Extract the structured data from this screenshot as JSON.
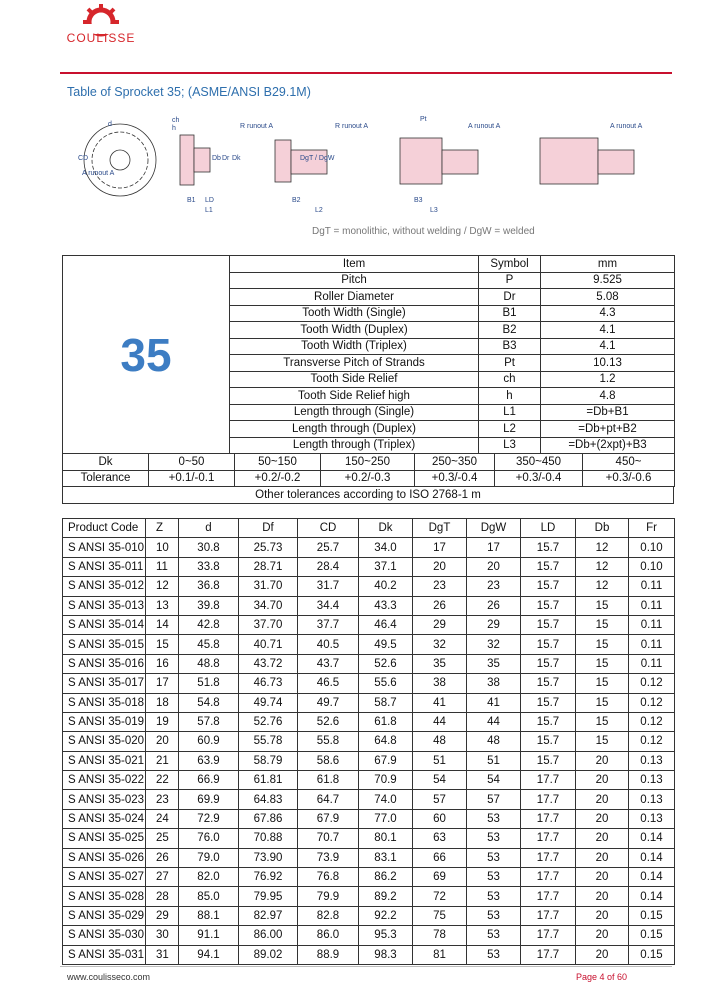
{
  "header": {
    "brand": "COULISSE",
    "title": "Table of Sprocket 35; (ASME/ANSI B29.1M)"
  },
  "drawing": {
    "labels": [
      "d",
      "CD",
      "A runout A",
      "ch",
      "h",
      "R runout A",
      "B1",
      "LD",
      "L1",
      "Db",
      "Dr",
      "Dk",
      "R runout A",
      "B2",
      "L2",
      "DgT / DgW",
      "Pt",
      "A runout A",
      "B3",
      "L3",
      "A runout A"
    ],
    "caption": "DgT = monolithic, without welding / DgW = welded"
  },
  "spec": {
    "big": "35",
    "columns": [
      "Item",
      "Symbol",
      "mm"
    ],
    "rows": [
      [
        "Pitch",
        "P",
        "9.525"
      ],
      [
        "Roller Diameter",
        "Dr",
        "5.08"
      ],
      [
        "Tooth Width (Single)",
        "B1",
        "4.3"
      ],
      [
        "Tooth Width (Duplex)",
        "B2",
        "4.1"
      ],
      [
        "Tooth Width (Triplex)",
        "B3",
        "4.1"
      ],
      [
        "Transverse Pitch of Strands",
        "Pt",
        "10.13"
      ],
      [
        "Tooth Side Relief",
        "ch",
        "1.2"
      ],
      [
        "Tooth Side Relief high",
        "h",
        "4.8"
      ],
      [
        "Length through (Single)",
        "L1",
        "=Db+B1"
      ],
      [
        "Length through (Duplex)",
        "L2",
        "=Db+pt+B2"
      ],
      [
        "Length through (Triplex)",
        "L3",
        "=Db+(2xpt)+B3"
      ]
    ],
    "dk_row": [
      "Dk",
      "0~50",
      "50~150",
      "150~250",
      "250~350",
      "350~450",
      "450~"
    ],
    "tolerance_row": [
      "Tolerance",
      "+0.1/-0.1",
      "+0.2/-0.2",
      "+0.2/-0.3",
      "+0.3/-0.4",
      "+0.3/-0.4",
      "+0.3/-0.6"
    ],
    "note": "Other tolerances according to ISO 2768-1 m"
  },
  "products": {
    "columns": [
      "Product Code",
      "Z",
      "d",
      "Df",
      "CD",
      "Dk",
      "DgT",
      "DgW",
      "LD",
      "Db",
      "Fr"
    ],
    "rows": [
      [
        "S ANSI 35-010",
        "10",
        "30.8",
        "25.73",
        "25.7",
        "34.0",
        "17",
        "17",
        "15.7",
        "12",
        "0.10"
      ],
      [
        "S ANSI 35-011",
        "11",
        "33.8",
        "28.71",
        "28.4",
        "37.1",
        "20",
        "20",
        "15.7",
        "12",
        "0.10"
      ],
      [
        "S ANSI 35-012",
        "12",
        "36.8",
        "31.70",
        "31.7",
        "40.2",
        "23",
        "23",
        "15.7",
        "12",
        "0.11"
      ],
      [
        "S ANSI 35-013",
        "13",
        "39.8",
        "34.70",
        "34.4",
        "43.3",
        "26",
        "26",
        "15.7",
        "15",
        "0.11"
      ],
      [
        "S ANSI 35-014",
        "14",
        "42.8",
        "37.70",
        "37.7",
        "46.4",
        "29",
        "29",
        "15.7",
        "15",
        "0.11"
      ],
      [
        "S ANSI 35-015",
        "15",
        "45.8",
        "40.71",
        "40.5",
        "49.5",
        "32",
        "32",
        "15.7",
        "15",
        "0.11"
      ],
      [
        "S ANSI 35-016",
        "16",
        "48.8",
        "43.72",
        "43.7",
        "52.6",
        "35",
        "35",
        "15.7",
        "15",
        "0.11"
      ],
      [
        "S ANSI 35-017",
        "17",
        "51.8",
        "46.73",
        "46.5",
        "55.6",
        "38",
        "38",
        "15.7",
        "15",
        "0.12"
      ],
      [
        "S ANSI 35-018",
        "18",
        "54.8",
        "49.74",
        "49.7",
        "58.7",
        "41",
        "41",
        "15.7",
        "15",
        "0.12"
      ],
      [
        "S ANSI 35-019",
        "19",
        "57.8",
        "52.76",
        "52.6",
        "61.8",
        "44",
        "44",
        "15.7",
        "15",
        "0.12"
      ],
      [
        "S ANSI 35-020",
        "20",
        "60.9",
        "55.78",
        "55.8",
        "64.8",
        "48",
        "48",
        "15.7",
        "15",
        "0.12"
      ],
      [
        "S ANSI 35-021",
        "21",
        "63.9",
        "58.79",
        "58.6",
        "67.9",
        "51",
        "51",
        "15.7",
        "20",
        "0.13"
      ],
      [
        "S ANSI 35-022",
        "22",
        "66.9",
        "61.81",
        "61.8",
        "70.9",
        "54",
        "54",
        "17.7",
        "20",
        "0.13"
      ],
      [
        "S ANSI 35-023",
        "23",
        "69.9",
        "64.83",
        "64.7",
        "74.0",
        "57",
        "57",
        "17.7",
        "20",
        "0.13"
      ],
      [
        "S ANSI 35-024",
        "24",
        "72.9",
        "67.86",
        "67.9",
        "77.0",
        "60",
        "53",
        "17.7",
        "20",
        "0.13"
      ],
      [
        "S ANSI 35-025",
        "25",
        "76.0",
        "70.88",
        "70.7",
        "80.1",
        "63",
        "53",
        "17.7",
        "20",
        "0.14"
      ],
      [
        "S ANSI 35-026",
        "26",
        "79.0",
        "73.90",
        "73.9",
        "83.1",
        "66",
        "53",
        "17.7",
        "20",
        "0.14"
      ],
      [
        "S ANSI 35-027",
        "27",
        "82.0",
        "76.92",
        "76.8",
        "86.2",
        "69",
        "53",
        "17.7",
        "20",
        "0.14"
      ],
      [
        "S ANSI 35-028",
        "28",
        "85.0",
        "79.95",
        "79.9",
        "89.2",
        "72",
        "53",
        "17.7",
        "20",
        "0.14"
      ],
      [
        "S ANSI 35-029",
        "29",
        "88.1",
        "82.97",
        "82.8",
        "92.2",
        "75",
        "53",
        "17.7",
        "20",
        "0.15"
      ],
      [
        "S ANSI 35-030",
        "30",
        "91.1",
        "86.00",
        "86.0",
        "95.3",
        "78",
        "53",
        "17.7",
        "20",
        "0.15"
      ],
      [
        "S ANSI 35-031",
        "31",
        "94.1",
        "89.02",
        "88.9",
        "98.3",
        "81",
        "53",
        "17.7",
        "20",
        "0.15"
      ]
    ]
  },
  "footer": {
    "url": "www.coulisseco.com",
    "page": "Page 4 of 60"
  }
}
